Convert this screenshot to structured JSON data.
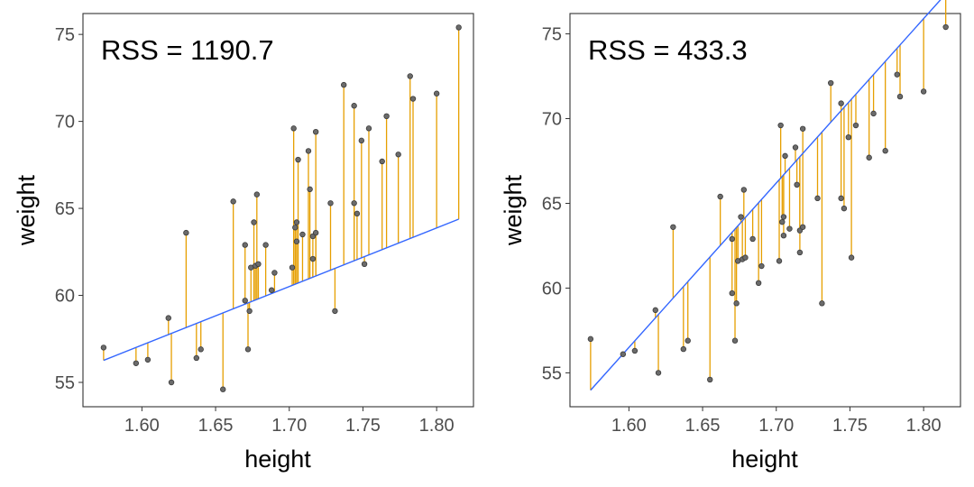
{
  "chart_data": [
    {
      "type": "scatter",
      "annotation": "RSS = 1190.7",
      "xlabel": "height",
      "ylabel": "weight",
      "xlim": [
        1.56,
        1.825
      ],
      "ylim": [
        53.6,
        76.2
      ],
      "xticks": [
        1.6,
        1.65,
        1.7,
        1.75,
        1.8
      ],
      "xtick_labels": [
        "1.60",
        "1.65",
        "1.70",
        "1.75",
        "1.80"
      ],
      "yticks": [
        55,
        60,
        65,
        70,
        75
      ],
      "ytick_labels": [
        "55",
        "60",
        "65",
        "70",
        "75"
      ],
      "grid": false,
      "fit_line": {
        "intercept": 3.27,
        "slope": 33.67
      },
      "points": [
        [
          1.574,
          57.0
        ],
        [
          1.596,
          56.1
        ],
        [
          1.604,
          56.3
        ],
        [
          1.618,
          58.7
        ],
        [
          1.62,
          55.0
        ],
        [
          1.63,
          63.6
        ],
        [
          1.637,
          56.4
        ],
        [
          1.64,
          56.9
        ],
        [
          1.655,
          54.6
        ],
        [
          1.662,
          65.4
        ],
        [
          1.67,
          62.9
        ],
        [
          1.67,
          59.7
        ],
        [
          1.672,
          56.9
        ],
        [
          1.673,
          59.1
        ],
        [
          1.674,
          61.6
        ],
        [
          1.676,
          64.2
        ],
        [
          1.677,
          61.7
        ],
        [
          1.679,
          61.8
        ],
        [
          1.678,
          65.8
        ],
        [
          1.684,
          62.9
        ],
        [
          1.688,
          60.3
        ],
        [
          1.69,
          61.3
        ],
        [
          1.702,
          61.6
        ],
        [
          1.703,
          69.6
        ],
        [
          1.704,
          63.9
        ],
        [
          1.705,
          64.2
        ],
        [
          1.705,
          63.1
        ],
        [
          1.706,
          67.8
        ],
        [
          1.709,
          63.5
        ],
        [
          1.713,
          68.3
        ],
        [
          1.714,
          66.1
        ],
        [
          1.716,
          62.1
        ],
        [
          1.716,
          63.4
        ],
        [
          1.718,
          69.4
        ],
        [
          1.718,
          63.6
        ],
        [
          1.728,
          65.3
        ],
        [
          1.731,
          59.1
        ],
        [
          1.737,
          72.1
        ],
        [
          1.744,
          70.9
        ],
        [
          1.744,
          65.3
        ],
        [
          1.746,
          64.7
        ],
        [
          1.749,
          68.9
        ],
        [
          1.751,
          61.8
        ],
        [
          1.754,
          69.6
        ],
        [
          1.763,
          67.7
        ],
        [
          1.766,
          70.3
        ],
        [
          1.774,
          68.1
        ],
        [
          1.782,
          72.6
        ],
        [
          1.784,
          71.3
        ],
        [
          1.8,
          71.6
        ],
        [
          1.815,
          75.4
        ]
      ],
      "colors": {
        "line": "#3366ff",
        "segment": "#e69f00",
        "point_fill": "#6b6b6b",
        "point_stroke": "#3a3a3a",
        "panel_border": "#333333"
      }
    },
    {
      "type": "scatter",
      "annotation": "RSS = 433.3",
      "xlabel": "height",
      "ylabel": "weight",
      "xlim": [
        1.56,
        1.825
      ],
      "ylim": [
        53.0,
        76.2
      ],
      "xticks": [
        1.6,
        1.65,
        1.7,
        1.75,
        1.8
      ],
      "xtick_labels": [
        "1.60",
        "1.65",
        "1.70",
        "1.75",
        "1.80"
      ],
      "yticks": [
        55,
        60,
        65,
        70,
        75
      ],
      "ytick_labels": [
        "55",
        "60",
        "65",
        "70",
        "75"
      ],
      "grid": false,
      "fit_line": {
        "intercept": -98.7,
        "slope": 97.0
      },
      "points": [
        [
          1.574,
          57.0
        ],
        [
          1.596,
          56.1
        ],
        [
          1.604,
          56.3
        ],
        [
          1.618,
          58.7
        ],
        [
          1.62,
          55.0
        ],
        [
          1.63,
          63.6
        ],
        [
          1.637,
          56.4
        ],
        [
          1.64,
          56.9
        ],
        [
          1.655,
          54.6
        ],
        [
          1.662,
          65.4
        ],
        [
          1.67,
          62.9
        ],
        [
          1.67,
          59.7
        ],
        [
          1.672,
          56.9
        ],
        [
          1.673,
          59.1
        ],
        [
          1.674,
          61.6
        ],
        [
          1.676,
          64.2
        ],
        [
          1.677,
          61.7
        ],
        [
          1.679,
          61.8
        ],
        [
          1.678,
          65.8
        ],
        [
          1.684,
          62.9
        ],
        [
          1.688,
          60.3
        ],
        [
          1.69,
          61.3
        ],
        [
          1.702,
          61.6
        ],
        [
          1.703,
          69.6
        ],
        [
          1.704,
          63.9
        ],
        [
          1.705,
          64.2
        ],
        [
          1.705,
          63.1
        ],
        [
          1.706,
          67.8
        ],
        [
          1.709,
          63.5
        ],
        [
          1.713,
          68.3
        ],
        [
          1.714,
          66.1
        ],
        [
          1.716,
          62.1
        ],
        [
          1.716,
          63.4
        ],
        [
          1.718,
          69.4
        ],
        [
          1.718,
          63.6
        ],
        [
          1.728,
          65.3
        ],
        [
          1.731,
          59.1
        ],
        [
          1.737,
          72.1
        ],
        [
          1.744,
          70.9
        ],
        [
          1.744,
          65.3
        ],
        [
          1.746,
          64.7
        ],
        [
          1.749,
          68.9
        ],
        [
          1.751,
          61.8
        ],
        [
          1.754,
          69.6
        ],
        [
          1.763,
          67.7
        ],
        [
          1.766,
          70.3
        ],
        [
          1.774,
          68.1
        ],
        [
          1.782,
          72.6
        ],
        [
          1.784,
          71.3
        ],
        [
          1.8,
          71.6
        ],
        [
          1.815,
          75.4
        ]
      ],
      "colors": {
        "line": "#3366ff",
        "segment": "#e69f00",
        "point_fill": "#6b6b6b",
        "point_stroke": "#3a3a3a",
        "panel_border": "#333333"
      }
    }
  ]
}
